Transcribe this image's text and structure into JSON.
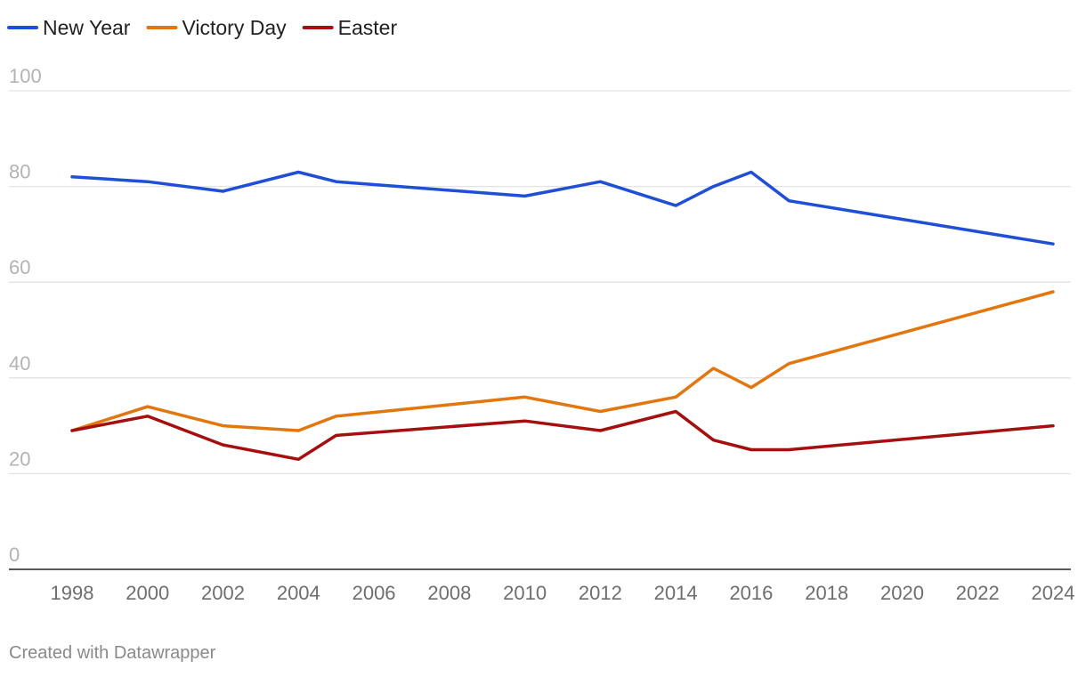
{
  "chart_data": {
    "type": "line",
    "title": "",
    "xlabel": "",
    "ylabel": "",
    "x": [
      1998,
      2000,
      2002,
      2004,
      2005,
      2010,
      2012,
      2014,
      2015,
      2016,
      2017,
      2024
    ],
    "series": [
      {
        "name": "New Year",
        "color": "#1f4fd6",
        "values": [
          82,
          81,
          79,
          83,
          81,
          78,
          81,
          76,
          80,
          83,
          77,
          68
        ]
      },
      {
        "name": "Victory Day",
        "color": "#e2760f",
        "values": [
          29,
          34,
          30,
          29,
          32,
          36,
          33,
          36,
          42,
          38,
          43,
          58
        ]
      },
      {
        "name": "Easter",
        "color": "#a50f0f",
        "values": [
          29,
          32,
          26,
          23,
          28,
          31,
          29,
          33,
          27,
          25,
          25,
          30
        ]
      }
    ],
    "ylim": [
      0,
      100
    ],
    "yticks": [
      0,
      20,
      40,
      60,
      80,
      100
    ],
    "xlim": [
      1998,
      2024
    ],
    "xticks": [
      1998,
      2000,
      2002,
      2004,
      2006,
      2008,
      2010,
      2012,
      2014,
      2016,
      2018,
      2020,
      2022,
      2024
    ],
    "grid": true,
    "legend": "top-left"
  },
  "footer": "Created with Datawrapper"
}
